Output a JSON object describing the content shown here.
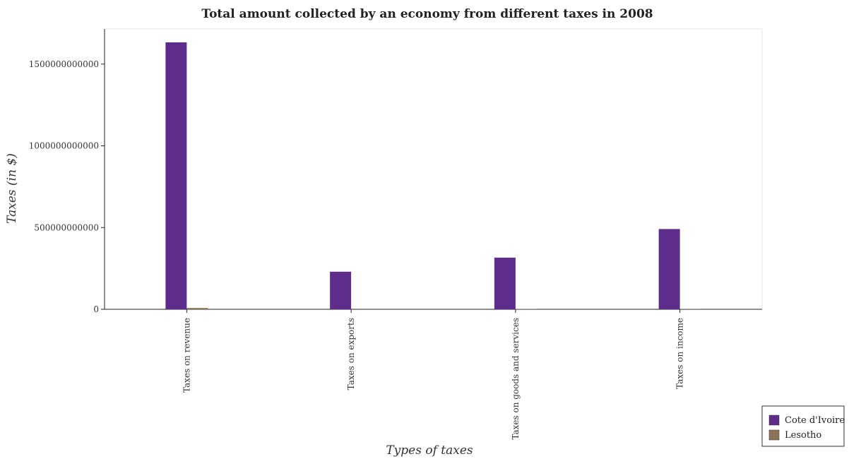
{
  "chart_data": {
    "type": "bar",
    "title": "Total amount collected by an economy from different taxes in 2008",
    "xlabel": "Types of taxes",
    "ylabel": "Taxes (in $)",
    "categories": [
      "Taxes on revenue",
      "Taxes on exports",
      "Taxes on goods and services",
      "Taxes on income"
    ],
    "series": [
      {
        "name": "Cote d'Ivoire",
        "color": "#5e2d8c",
        "values": [
          1633000000000,
          230000000000,
          316000000000,
          491000000000
        ]
      },
      {
        "name": "Lesotho",
        "color": "#8b7355",
        "values": [
          8000000000,
          0,
          1500000000,
          1200000000
        ]
      }
    ],
    "yticks": [
      0,
      500000000000,
      1000000000000,
      1500000000000
    ],
    "ytick_labels": [
      "0",
      "500000000000",
      "1000000000000",
      "1500000000000"
    ],
    "ylim": [
      0,
      1715000000000
    ],
    "grid": false,
    "legend_position": "bottom-right"
  }
}
